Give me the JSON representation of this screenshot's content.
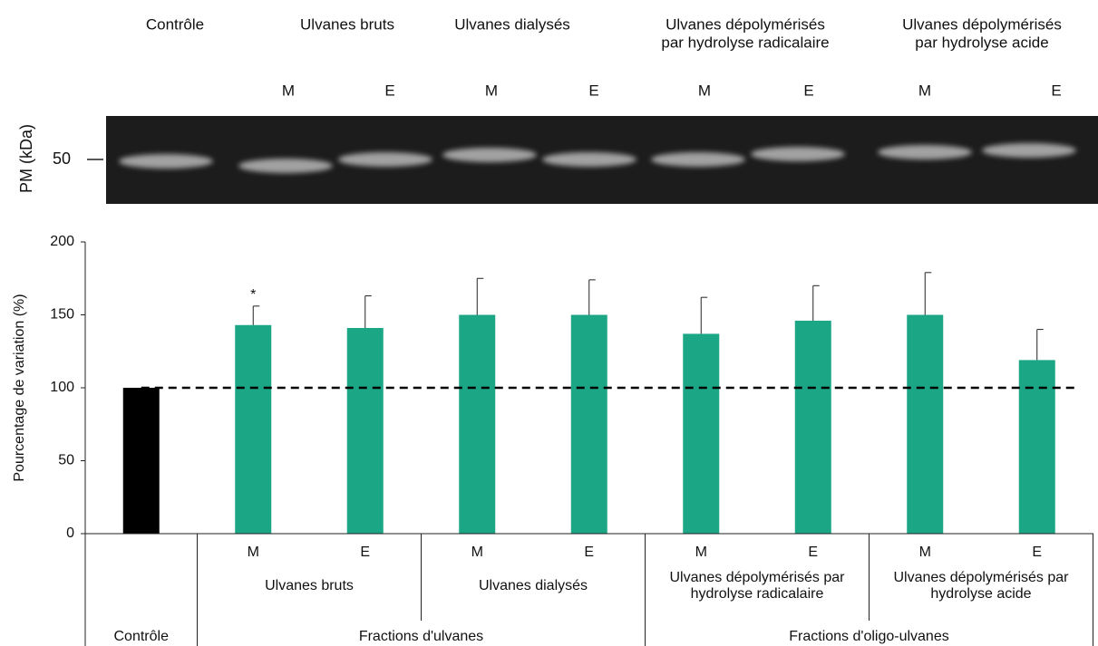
{
  "gel": {
    "y_label": "PM (kDa)",
    "marker": "50",
    "lane_groups": [
      {
        "label": [
          "Contrôle"
        ]
      },
      {
        "label": [
          "Ulvanes bruts"
        ]
      },
      {
        "label": [
          "Ulvanes dialysés"
        ]
      },
      {
        "label": [
          "Ulvanes dépolymérisés",
          "par hydrolyse radicalaire"
        ]
      },
      {
        "label": [
          "Ulvanes dépolymérisés",
          "par hydrolyse acide"
        ]
      }
    ],
    "lane_labels": [
      "M",
      "E",
      "M",
      "E",
      "M",
      "E",
      "M",
      "E"
    ]
  },
  "chart_data": {
    "type": "bar",
    "y_label": "Pourcentage de variation (%)",
    "categories": [
      null,
      "M",
      "E",
      "M",
      "E",
      "M",
      "E",
      "M",
      "E"
    ],
    "values": [
      100,
      143,
      141,
      150,
      150,
      137,
      146,
      150,
      119
    ],
    "errors": [
      0,
      13,
      22,
      25,
      24,
      25,
      24,
      29,
      21
    ],
    "colors": [
      "#000000",
      "#1ba686",
      "#1ba686",
      "#1ba686",
      "#1ba686",
      "#1ba686",
      "#1ba686",
      "#1ba686",
      "#1ba686"
    ],
    "annotations": [
      {
        "index": 1,
        "text": "*"
      }
    ],
    "reference_line": 100,
    "groups": [
      {
        "label": [
          "Ulvanes bruts"
        ],
        "span": [
          1,
          2
        ]
      },
      {
        "label": [
          "Ulvanes dialysés"
        ],
        "span": [
          3,
          4
        ]
      },
      {
        "label": [
          "Ulvanes dépolymérisés par",
          "hydrolyse radicalaire"
        ],
        "span": [
          5,
          6
        ]
      },
      {
        "label": [
          "Ulvanes dépolymérisés par",
          "hydrolyse acide"
        ],
        "span": [
          7,
          8
        ]
      }
    ],
    "supergroups": [
      {
        "label": "Contrôle",
        "span": [
          0,
          0
        ]
      },
      {
        "label": "Fractions d'ulvanes",
        "span": [
          1,
          4
        ]
      },
      {
        "label": "Fractions d'oligo-ulvanes",
        "span": [
          5,
          8
        ]
      }
    ],
    "ylim": [
      0,
      200
    ],
    "yticks": [
      0,
      50,
      100,
      150,
      200
    ],
    "grid": false
  }
}
